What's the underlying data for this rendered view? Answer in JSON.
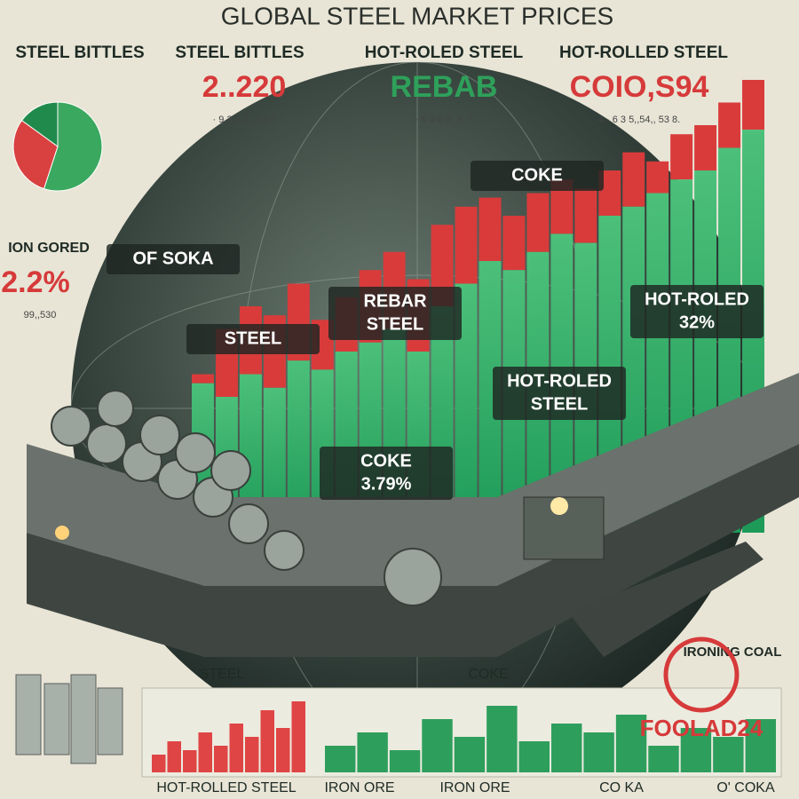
{
  "header": {
    "title": "GLOBAL STEEL MARKET PRICES"
  },
  "top_labels": [
    "STEEL BITTLES",
    "STEEL BITTLES",
    "HOT-ROLED STEEL",
    "HOT-ROLLED STEEL"
  ],
  "top_values": [
    {
      "text": "2..220",
      "color": "#d63a3a"
    },
    {
      "text": "REBAB",
      "color": "#2ea05a"
    },
    {
      "text": "COIO,S94",
      "color": "#d63a3a"
    }
  ],
  "top_small": [
    "· 9.3 2 2, 3 3.4",
    "· 6 3 0 5. 3. 7",
    "4 · 6 3 5,,54,, 53 8."
  ],
  "left_panel": {
    "label": "ION GORED",
    "value": "2.2%",
    "small": "99,,530"
  },
  "pie": {
    "values": [
      55,
      30,
      15
    ],
    "colors": [
      "#3aa85e",
      "#d94040",
      "#1f8a4c"
    ]
  },
  "main_chart": {
    "ylim": [
      0,
      100
    ],
    "green": [
      33,
      30,
      35,
      32,
      38,
      36,
      40,
      42,
      45,
      40,
      50,
      55,
      60,
      58,
      62,
      66,
      64,
      70,
      72,
      75,
      78,
      80,
      85,
      89
    ],
    "red": [
      35,
      45,
      50,
      48,
      55,
      47,
      52,
      58,
      62,
      56,
      68,
      72,
      74,
      70,
      75,
      78,
      76,
      80,
      84,
      82,
      88,
      90,
      95,
      100
    ]
  },
  "callouts": [
    {
      "lines": [
        "COKE"
      ]
    },
    {
      "lines": [
        "OF SOKA"
      ]
    },
    {
      "lines": [
        "REBAR",
        "STEEL"
      ]
    },
    {
      "lines": [
        "STEEL"
      ]
    },
    {
      "lines": [
        "HOT-ROLED",
        "32%"
      ]
    },
    {
      "lines": [
        "HOT-ROLED",
        "STEEL"
      ]
    },
    {
      "lines": [
        "COKE",
        "3.79%"
      ]
    }
  ],
  "bottom": {
    "section_labels": [
      "STEEL",
      "COKE",
      "IRONING COAL"
    ],
    "logo": "FOOLAD24",
    "footer_labels": [
      "HOT-ROLLED STEEL",
      "IRON ORE",
      "IRON ORE",
      "CO KA",
      "O' COKA"
    ],
    "left_bars": [
      20,
      35,
      25,
      45,
      30,
      55,
      40,
      70,
      50,
      80
    ],
    "right_bars": [
      30,
      45,
      25,
      60,
      40,
      75,
      35,
      55,
      45,
      65,
      30,
      50,
      40,
      60
    ]
  }
}
